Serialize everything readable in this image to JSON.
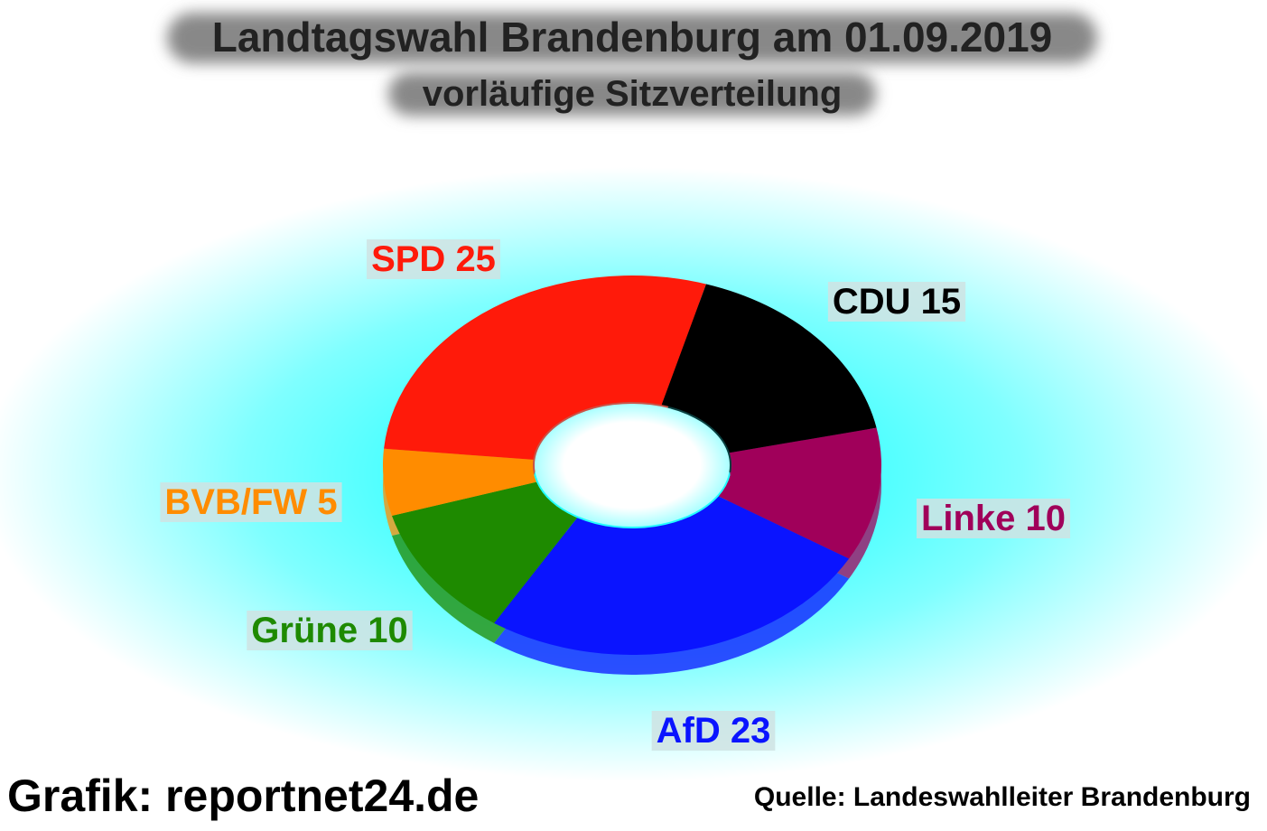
{
  "chart_data": {
    "type": "donut",
    "title": "Landtagswahl Brandenburg am 01.09.2019",
    "subtitle": "vorläufige Sitzverteilung",
    "categories": [
      "SPD",
      "CDU",
      "Linke",
      "AfD",
      "Grüne",
      "BVB/FW"
    ],
    "values": [
      25,
      15,
      10,
      23,
      10,
      5
    ],
    "colors": [
      "#ff1a0a",
      "#000000",
      "#a0005a",
      "#0a14ff",
      "#1e8a00",
      "#ff8c00"
    ],
    "credit": "Grafik: reportnet24.de",
    "source": "Quelle: Landeswahlleiter Brandenburg"
  }
}
